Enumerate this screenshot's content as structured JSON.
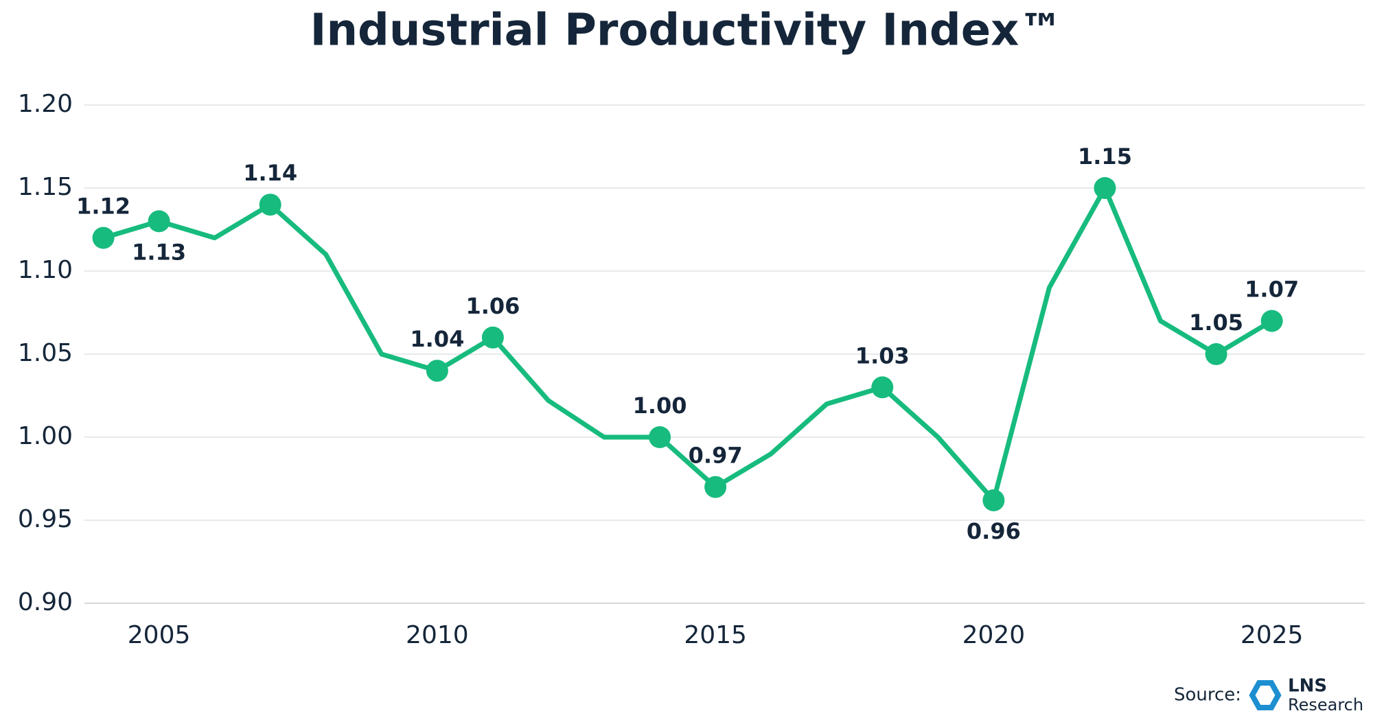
{
  "chart_data": {
    "type": "line",
    "title": "Industrial Productivity Index™",
    "x": [
      2004,
      2005,
      2006,
      2007,
      2008,
      2009,
      2010,
      2011,
      2012,
      2013,
      2014,
      2015,
      2016,
      2017,
      2018,
      2019,
      2020,
      2021,
      2022,
      2023,
      2024,
      2025
    ],
    "series": [
      {
        "name": "Industrial Productivity Index",
        "color": "#17bb7e",
        "values": [
          1.12,
          1.13,
          1.12,
          1.14,
          1.11,
          1.05,
          1.04,
          1.06,
          1.022,
          1.0,
          1.0,
          0.97,
          0.99,
          1.02,
          1.03,
          1.0,
          0.962,
          1.09,
          1.15,
          1.07,
          1.05,
          1.07
        ],
        "value_labels": [
          "1.12",
          "1.13",
          null,
          "1.14",
          null,
          null,
          "1.04",
          "1.06",
          null,
          null,
          "1.00",
          "0.97",
          null,
          null,
          "1.03",
          null,
          "0.96",
          null,
          "1.15",
          null,
          "1.05",
          "1.07"
        ]
      }
    ],
    "xlim": [
      2003.66,
      2026.67
    ],
    "xticks": [
      2005,
      2010,
      2015,
      2020,
      2025
    ],
    "ylim": [
      0.9,
      1.2
    ],
    "yticks": [
      {
        "value": 0.9,
        "label": "0.90"
      },
      {
        "value": 0.95,
        "label": "0.95"
      },
      {
        "value": 1.0,
        "label": "1.00"
      },
      {
        "value": 1.05,
        "label": "1.05"
      },
      {
        "value": 1.1,
        "label": "1.10"
      },
      {
        "value": 1.15,
        "label": "1.15"
      },
      {
        "value": 1.2,
        "label": "1.20"
      }
    ],
    "grid": true,
    "source_label": "Source:",
    "logo_text": [
      "LNS",
      "Research"
    ]
  }
}
